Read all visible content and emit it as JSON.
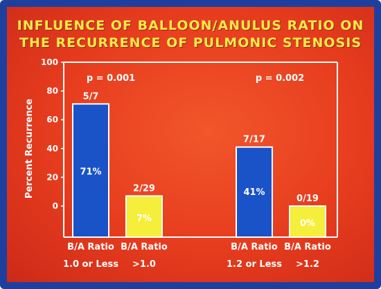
{
  "title_line1": "INFLUENCE OF BALLOON/ANULUS RATIO ON",
  "title_line2": "THE RECURRENCE OF PULMONIC STENOSIS",
  "colors": {
    "background": "#e8401f",
    "border": "#1f3f9f",
    "title": "#ffe84a",
    "bar_blue": "#1a52c8",
    "bar_yellow": "#f5ee3a",
    "axis": "#ffffff"
  },
  "chart_data": {
    "type": "bar",
    "title": "INFLUENCE OF BALLOON/ANULUS RATIO ON THE RECURRENCE OF PULMONIC STENOSIS",
    "ylabel": "Percent Recurrence",
    "xlabel": "",
    "ylim": [
      0,
      100
    ],
    "yticks": [
      "0",
      "20",
      "40",
      "60",
      "80",
      "100"
    ],
    "grid": false,
    "bars": [
      {
        "category_line1": "B/A Ratio",
        "category_line2": "1.0 or Less",
        "value": 71,
        "value_label": "71%",
        "count_label": "5/7",
        "color": "#1a52c8"
      },
      {
        "category_line1": "B/A Ratio",
        "category_line2": ">1.0",
        "value": 7,
        "value_label": "7%",
        "count_label": "2/29",
        "color": "#f5ee3a"
      },
      {
        "category_line1": "B/A Ratio",
        "category_line2": "1.2 or Less",
        "value": 41,
        "value_label": "41%",
        "count_label": "7/17",
        "color": "#1a52c8"
      },
      {
        "category_line1": "B/A Ratio",
        "category_line2": ">1.2",
        "value": 0,
        "value_label": "0%",
        "count_label": "0/19",
        "color": "#f5ee3a"
      }
    ],
    "annotations": [
      {
        "text": "p = 0.001",
        "group": 0
      },
      {
        "text": "p = 0.002",
        "group": 1
      }
    ]
  }
}
